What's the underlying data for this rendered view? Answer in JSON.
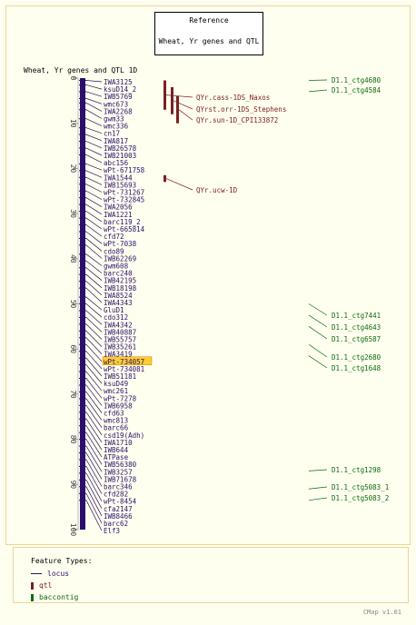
{
  "reference": {
    "title": "Reference",
    "subtitle": "Wheat, Yr genes and QTL"
  },
  "map_title": "Wheat, Yr genes and QTL 1D",
  "axis": {
    "ticks": [
      0,
      10,
      20,
      30,
      40,
      50,
      60,
      70,
      80,
      90,
      100
    ],
    "range": [
      0,
      100
    ]
  },
  "colors": {
    "locus": "#2b0f6b",
    "qtl": "#7a2020",
    "contig": "#0a6b0a",
    "highlight": "#ffcc33"
  },
  "loci": [
    {
      "name": "IWA3125",
      "pos": 0.5
    },
    {
      "name": "ksuD14_2",
      "pos": 1.5
    },
    {
      "name": "IWB5769",
      "pos": 3
    },
    {
      "name": "wmc673",
      "pos": 4.5
    },
    {
      "name": "IWA2268",
      "pos": 5.5
    },
    {
      "name": "gwm33",
      "pos": 7
    },
    {
      "name": "wmc336",
      "pos": 9
    },
    {
      "name": "cn17",
      "pos": 11
    },
    {
      "name": "IWA817",
      "pos": 12.5
    },
    {
      "name": "IWB26578",
      "pos": 14
    },
    {
      "name": "IWB21003",
      "pos": 15.5
    },
    {
      "name": "abc156",
      "pos": 17
    },
    {
      "name": "wPt-671758",
      "pos": 19
    },
    {
      "name": "IWA1544",
      "pos": 20.5
    },
    {
      "name": "IWB15693",
      "pos": 22
    },
    {
      "name": "wPt-731267",
      "pos": 23.5
    },
    {
      "name": "wPt-732845",
      "pos": 25
    },
    {
      "name": "IWA2056",
      "pos": 26.5
    },
    {
      "name": "IWA1221",
      "pos": 28
    },
    {
      "name": "barc119_2",
      "pos": 29.5
    },
    {
      "name": "wPt-665814",
      "pos": 31
    },
    {
      "name": "cfd72",
      "pos": 32.5
    },
    {
      "name": "wPt-7038",
      "pos": 34
    },
    {
      "name": "cdo89",
      "pos": 35.5
    },
    {
      "name": "IWB62269",
      "pos": 37
    },
    {
      "name": "gwm608",
      "pos": 39
    },
    {
      "name": "barc240",
      "pos": 40.5
    },
    {
      "name": "IWB42195",
      "pos": 42
    },
    {
      "name": "IWB18198",
      "pos": 43.5
    },
    {
      "name": "IWA8524",
      "pos": 45
    },
    {
      "name": "IWA4343",
      "pos": 46.5
    },
    {
      "name": "GluD1",
      "pos": 48.5
    },
    {
      "name": "cdo312",
      "pos": 50
    },
    {
      "name": "IWA4342",
      "pos": 51.5
    },
    {
      "name": "IWB40887",
      "pos": 53
    },
    {
      "name": "IWB55757",
      "pos": 54.5
    },
    {
      "name": "IWB35261",
      "pos": 56
    },
    {
      "name": "IWA3419",
      "pos": 57.5
    },
    {
      "name": "wPt-734057",
      "pos": 59,
      "highlight": true
    },
    {
      "name": "wPt-734081",
      "pos": 60.5
    },
    {
      "name": "IWB51181",
      "pos": 62
    },
    {
      "name": "ksuD49",
      "pos": 63.5
    },
    {
      "name": "wmc261",
      "pos": 65
    },
    {
      "name": "wPt-7278",
      "pos": 66.5
    },
    {
      "name": "IWB6958",
      "pos": 68
    },
    {
      "name": "cfd63",
      "pos": 69.5
    },
    {
      "name": "wmc813",
      "pos": 71
    },
    {
      "name": "barc66",
      "pos": 72.5
    },
    {
      "name": "csd19(Adh)",
      "pos": 74
    },
    {
      "name": "IWA1710",
      "pos": 75.5
    },
    {
      "name": "IWB644",
      "pos": 77
    },
    {
      "name": "ATPase",
      "pos": 78.5
    },
    {
      "name": "IWB56380",
      "pos": 80
    },
    {
      "name": "IWB3257",
      "pos": 81.5
    },
    {
      "name": "IWB71678",
      "pos": 83
    },
    {
      "name": "barc346",
      "pos": 84.5
    },
    {
      "name": "cfd282",
      "pos": 86
    },
    {
      "name": "wPt-8454",
      "pos": 87.5
    },
    {
      "name": "cfa2147",
      "pos": 89
    },
    {
      "name": "IWB8466",
      "pos": 90.5
    },
    {
      "name": "barc62",
      "pos": 92
    },
    {
      "name": "Elf3",
      "pos": 93.5
    }
  ],
  "qtls": [
    {
      "name": "QYr.cass-1DS_Naxos",
      "start": 0.5,
      "end": 7
    },
    {
      "name": "QYrst.orr-1DS_Stephens",
      "start": 2,
      "end": 8
    },
    {
      "name": "QYr.sun-1D_CPI133872",
      "start": 4,
      "end": 10
    },
    {
      "name": "QYr.ucw-1D",
      "start": 21.5,
      "end": 23
    }
  ],
  "contigs": [
    {
      "name": "D1.1_ctg4680",
      "pos": 0.5
    },
    {
      "name": "D1.1_ctg4584",
      "pos": 3
    },
    {
      "name": "D1.1_ctg7441",
      "pos": 50
    },
    {
      "name": "D1.1_ctg4643",
      "pos": 52.5
    },
    {
      "name": "D1.1_ctg6587",
      "pos": 55
    },
    {
      "name": "D1.1_ctg2680",
      "pos": 59
    },
    {
      "name": "D1.1_ctg1648",
      "pos": 61.5
    },
    {
      "name": "D1.1_ctg1298",
      "pos": 87
    },
    {
      "name": "D1.1_ctg5083_1",
      "pos": 91
    },
    {
      "name": "D1.1_ctg5083_2",
      "pos": 93.5
    }
  ],
  "legend": {
    "title": "Feature Types:",
    "items": [
      {
        "label": "locus",
        "kind": "locus"
      },
      {
        "label": "qtl",
        "kind": "qtl"
      },
      {
        "label": "baccontig",
        "kind": "contig"
      }
    ]
  },
  "footer": "CMap v1.01"
}
